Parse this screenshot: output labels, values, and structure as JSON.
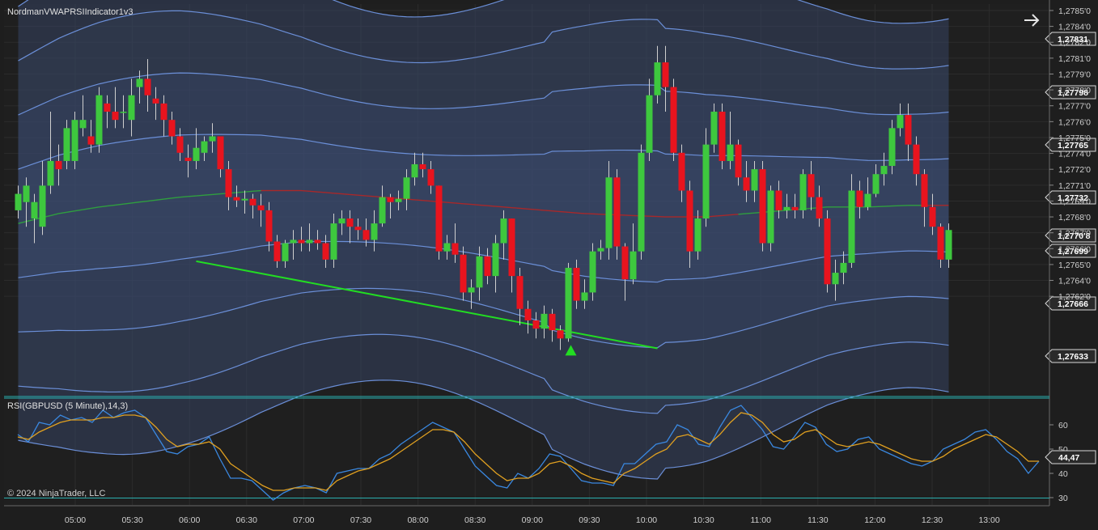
{
  "indicator_label": "NordmanVWAPRSIIndicator1v3",
  "rsi_label": "RSI(GBPUSD (5 Minute),14,3)",
  "copyright": "© 2024 NinjaTrader, LLC",
  "nav_icon": "arrow-right-icon",
  "colors": {
    "background": "#1e1e1e",
    "up": "#3ec83e",
    "down": "#e8141e",
    "band_line": "#6b8fd8",
    "band_fill": "#3a4a6e",
    "vwap_up": "#2f9e3f",
    "vwap_down": "#a8282a",
    "trendline": "#22dd22",
    "rsi": "#3a88e0",
    "rsi_signal": "#e0a020",
    "rsi_level": "#2ab0b0"
  },
  "chart_data": [
    {
      "type": "candlestick",
      "price_axis": {
        "ticks": [
          "1,2785'0",
          "1,2784'0",
          "1,2782'0",
          "1,2781'0",
          "1,2779'0",
          "1,2778'0",
          "1,2777'0",
          "1,2776'0",
          "1,2775'0",
          "1,2774'0",
          "1,2772'0",
          "1,2771'0",
          "1,2769'0",
          "1,2768'0",
          "1,2767'0",
          "1,2766'0",
          "1,2765'0",
          "1,2764'0",
          "1,2762'0"
        ]
      },
      "time_axis": {
        "ticks": [
          "05:00",
          "05:30",
          "06:00",
          "06:30",
          "07:00",
          "07:30",
          "08:00",
          "08:30",
          "09:00",
          "09:30",
          "10:00",
          "10:30",
          "11:00",
          "11:30",
          "12:00",
          "12:30",
          "13:00"
        ]
      },
      "price_tags": [
        "1,27831",
        "1,27798",
        "1,27765",
        "1,27732",
        "1,2770'8",
        "1,27699",
        "1,27666",
        "1,27633"
      ],
      "candles": [
        [
          1.2773,
          1.2774,
          1.27725,
          1.27745
        ],
        [
          1.27735,
          1.27745,
          1.2772,
          1.2775
        ],
        [
          1.27725,
          1.27735,
          1.2771,
          1.2774
        ],
        [
          1.2772,
          1.27745,
          1.27715,
          1.2776
        ],
        [
          1.27745,
          1.2776,
          1.2774,
          1.2779
        ],
        [
          1.2776,
          1.27755,
          1.27745,
          1.2777
        ],
        [
          1.2776,
          1.2778,
          1.27755,
          1.27785
        ],
        [
          1.2776,
          1.27785,
          1.27755,
          1.2779
        ],
        [
          1.2778,
          1.27785,
          1.27775,
          1.278
        ],
        [
          1.27775,
          1.2777,
          1.27765,
          1.27785
        ],
        [
          1.2777,
          1.278,
          1.27765,
          1.27805
        ],
        [
          1.27795,
          1.2779,
          1.2778,
          1.278
        ],
        [
          1.2779,
          1.27785,
          1.2778,
          1.27805
        ],
        [
          1.2779,
          1.2779,
          1.2778,
          1.278
        ],
        [
          1.27785,
          1.278,
          1.27775,
          1.2781
        ],
        [
          1.27805,
          1.2781,
          1.27795,
          1.27815
        ],
        [
          1.2781,
          1.278,
          1.2779,
          1.27822
        ],
        [
          1.27798,
          1.27795,
          1.27785,
          1.27805
        ],
        [
          1.27795,
          1.27785,
          1.27775,
          1.278
        ],
        [
          1.27785,
          1.27775,
          1.2777,
          1.2779
        ],
        [
          1.27775,
          1.27765,
          1.2776,
          1.2778
        ],
        [
          1.27762,
          1.2776,
          1.2775,
          1.2777
        ],
        [
          1.2776,
          1.27768,
          1.27755,
          1.2778
        ],
        [
          1.27765,
          1.27772,
          1.2776,
          1.27775
        ],
        [
          1.27772,
          1.27775,
          1.27765,
          1.27783
        ],
        [
          1.27775,
          1.27755,
          1.2775,
          1.27775
        ],
        [
          1.27755,
          1.27738,
          1.2773,
          1.2776
        ],
        [
          1.27738,
          1.27736,
          1.27732,
          1.27745
        ],
        [
          1.27736,
          1.27737,
          1.27728,
          1.27742
        ],
        [
          1.27737,
          1.27733,
          1.27725,
          1.2774
        ],
        [
          1.27733,
          1.2773,
          1.2772,
          1.2774
        ],
        [
          1.2773,
          1.27711,
          1.27705,
          1.27735
        ],
        [
          1.27711,
          1.27699,
          1.27695,
          1.27715
        ],
        [
          1.27699,
          1.2771,
          1.27695,
          1.27712
        ],
        [
          1.2771,
          1.27712,
          1.277,
          1.27718
        ],
        [
          1.27712,
          1.2771,
          1.27705,
          1.2772
        ],
        [
          1.2771,
          1.27712,
          1.27705,
          1.27722
        ],
        [
          1.27712,
          1.2771,
          1.27706,
          1.27718
        ],
        [
          1.2771,
          1.277,
          1.27695,
          1.27715
        ],
        [
          1.277,
          1.27722,
          1.27695,
          1.27728
        ],
        [
          1.27722,
          1.27725,
          1.27715,
          1.2773
        ],
        [
          1.27725,
          1.2772,
          1.2771,
          1.2773
        ],
        [
          1.2772,
          1.27718,
          1.27712,
          1.27725
        ],
        [
          1.27718,
          1.27712,
          1.27708,
          1.27725
        ],
        [
          1.27712,
          1.27722,
          1.27705,
          1.2773
        ],
        [
          1.27722,
          1.27738,
          1.2772,
          1.27745
        ],
        [
          1.27738,
          1.27735,
          1.27725,
          1.2774
        ],
        [
          1.27735,
          1.27737,
          1.2773,
          1.27742
        ],
        [
          1.27737,
          1.2775,
          1.2773,
          1.27755
        ],
        [
          1.2775,
          1.27758,
          1.27745,
          1.27765
        ],
        [
          1.27758,
          1.27755,
          1.2775,
          1.27765
        ],
        [
          1.27755,
          1.27745,
          1.2774,
          1.2776
        ],
        [
          1.27745,
          1.27705,
          1.277,
          1.27745
        ],
        [
          1.27705,
          1.2771,
          1.277,
          1.27715
        ],
        [
          1.2771,
          1.27703,
          1.27698,
          1.27722
        ],
        [
          1.27703,
          1.2768,
          1.27675,
          1.27708
        ],
        [
          1.2768,
          1.27683,
          1.2767,
          1.27688
        ],
        [
          1.27683,
          1.27702,
          1.27675,
          1.27708
        ],
        [
          1.27702,
          1.2769,
          1.27685,
          1.27707
        ],
        [
          1.2769,
          1.2771,
          1.2768,
          1.27715
        ],
        [
          1.2771,
          1.27725,
          1.277,
          1.2773
        ],
        [
          1.27725,
          1.2769,
          1.2768,
          1.27725
        ],
        [
          1.2769,
          1.2767,
          1.2766,
          1.27695
        ],
        [
          1.2767,
          1.27663,
          1.27655,
          1.27675
        ],
        [
          1.27663,
          1.27658,
          1.27652,
          1.27668
        ],
        [
          1.27658,
          1.27667,
          1.27652,
          1.27672
        ],
        [
          1.27667,
          1.27657,
          1.2765,
          1.2767
        ],
        [
          1.27657,
          1.27652,
          1.27645,
          1.2766
        ],
        [
          1.27652,
          1.27695,
          1.2765,
          1.27698
        ],
        [
          1.27695,
          1.27675,
          1.2767,
          1.277
        ],
        [
          1.27675,
          1.2768,
          1.2767,
          1.27688
        ],
        [
          1.2768,
          1.27705,
          1.27675,
          1.2771
        ],
        [
          1.27705,
          1.27707,
          1.277,
          1.27712
        ],
        [
          1.27707,
          1.2775,
          1.277,
          1.2776
        ],
        [
          1.2775,
          1.27708,
          1.277,
          1.27755
        ],
        [
          1.27708,
          1.27688,
          1.27675,
          1.2771
        ],
        [
          1.27688,
          1.27705,
          1.27685,
          1.27722
        ],
        [
          1.27705,
          1.27765,
          1.277,
          1.2777
        ],
        [
          1.27765,
          1.278,
          1.2776,
          1.2781
        ],
        [
          1.278,
          1.2782,
          1.27795,
          1.2783
        ],
        [
          1.2782,
          1.27805,
          1.2779,
          1.2783
        ],
        [
          1.27805,
          1.27765,
          1.2776,
          1.2781
        ],
        [
          1.27765,
          1.27742,
          1.27735,
          1.2777
        ],
        [
          1.27742,
          1.27705,
          1.27695,
          1.27748
        ],
        [
          1.27705,
          1.27725,
          1.277,
          1.2773
        ],
        [
          1.27725,
          1.2777,
          1.2772,
          1.2778
        ],
        [
          1.2777,
          1.2779,
          1.27765,
          1.27795
        ],
        [
          1.2779,
          1.2776,
          1.27755,
          1.27795
        ],
        [
          1.2776,
          1.2777,
          1.27755,
          1.2779
        ],
        [
          1.2777,
          1.2775,
          1.27745,
          1.27773
        ],
        [
          1.2775,
          1.27742,
          1.27735,
          1.2776
        ],
        [
          1.27742,
          1.27755,
          1.27735,
          1.2776
        ],
        [
          1.27755,
          1.2771,
          1.27705,
          1.2776
        ],
        [
          1.2771,
          1.27742,
          1.27705,
          1.27745
        ],
        [
          1.27742,
          1.2773,
          1.27725,
          1.27748
        ],
        [
          1.2773,
          1.27732,
          1.27725,
          1.2774
        ],
        [
          1.27732,
          1.2773,
          1.27725,
          1.2774
        ],
        [
          1.2773,
          1.27752,
          1.27725,
          1.27755
        ],
        [
          1.27752,
          1.27738,
          1.2773,
          1.2776
        ],
        [
          1.27738,
          1.27725,
          1.2772,
          1.27745
        ],
        [
          1.27725,
          1.27685,
          1.2768,
          1.2773
        ],
        [
          1.27685,
          1.27692,
          1.27675,
          1.277
        ],
        [
          1.27692,
          1.27698,
          1.27685,
          1.27705
        ],
        [
          1.27698,
          1.27742,
          1.27695,
          1.27752
        ],
        [
          1.27742,
          1.27732,
          1.27725,
          1.27748
        ],
        [
          1.27732,
          1.2774,
          1.2773,
          1.2775
        ],
        [
          1.2774,
          1.27752,
          1.27738,
          1.27758
        ],
        [
          1.27752,
          1.27757,
          1.27745,
          1.27765
        ],
        [
          1.27757,
          1.2778,
          1.27752,
          1.27785
        ],
        [
          1.2778,
          1.27788,
          1.27775,
          1.27795
        ],
        [
          1.27788,
          1.2777,
          1.2776,
          1.27795
        ],
        [
          1.2777,
          1.27752,
          1.27745,
          1.27775
        ],
        [
          1.27752,
          1.27732,
          1.2772,
          1.27755
        ],
        [
          1.27732,
          1.2772,
          1.27715,
          1.2774
        ],
        [
          1.2772,
          1.277,
          1.27695,
          1.27722
        ],
        [
          1.277,
          1.27718,
          1.27695,
          1.27722
        ]
      ],
      "vwap": [
        1.27722,
        1.27728,
        1.27732,
        1.27735,
        1.27738,
        1.2774,
        1.27742,
        1.27742,
        1.2774,
        1.27738,
        1.27736,
        1.27734,
        1.27732,
        1.2773,
        1.27728,
        1.27727,
        1.27726,
        1.27726,
        1.27728,
        1.2773,
        1.27732,
        1.27732,
        1.27733,
        1.27733
      ],
      "band_offsets": [
        0.00132,
        0.00099,
        0.00066,
        0.00033,
        -0.00033,
        -0.00066,
        -0.00099,
        -0.00132
      ],
      "trendline": {
        "from": [
          1.27699,
          22
        ],
        "to": [
          1.27646,
          49
        ]
      },
      "signal": {
        "type": "buy",
        "candle": 68
      }
    },
    {
      "type": "line",
      "title": "RSI",
      "y_ticks": [
        60,
        50,
        40,
        30
      ],
      "y_range": [
        27,
        71
      ],
      "levels": [
        70,
        30
      ],
      "last_value": "44,47",
      "series": [
        {
          "values": [
            56,
            53,
            61,
            60,
            64,
            62,
            63,
            61,
            66,
            63,
            65,
            66,
            63,
            56,
            49,
            48,
            51,
            52,
            55,
            46,
            38,
            38,
            37,
            33,
            29,
            32,
            34,
            35,
            34,
            32,
            40,
            41,
            42,
            42,
            46,
            48,
            52,
            55,
            58,
            61,
            59,
            57,
            50,
            43,
            39,
            35,
            34,
            40,
            38,
            42,
            48,
            47,
            42,
            37,
            36,
            36,
            35,
            44,
            44,
            48,
            52,
            53,
            60,
            58,
            52,
            51,
            59,
            66,
            68,
            63,
            58,
            51,
            50,
            55,
            61,
            59,
            52,
            49,
            50,
            54,
            55,
            50,
            48,
            46,
            44,
            43,
            45,
            50,
            52,
            54,
            57,
            58,
            54,
            49,
            46,
            40,
            45
          ]
        },
        {
          "values": [
            55,
            54,
            57,
            59,
            61,
            62,
            62,
            62,
            63,
            63,
            64,
            64,
            63,
            59,
            54,
            51,
            52,
            52,
            53,
            50,
            44,
            41,
            38,
            35,
            33,
            33,
            34,
            34,
            34,
            33,
            37,
            39,
            41,
            42,
            44,
            46,
            49,
            52,
            55,
            58,
            58,
            57,
            53,
            48,
            44,
            40,
            37,
            38,
            38,
            40,
            44,
            45,
            43,
            40,
            38,
            37,
            36,
            40,
            42,
            45,
            48,
            50,
            55,
            56,
            54,
            52,
            56,
            61,
            65,
            64,
            61,
            56,
            53,
            54,
            57,
            58,
            55,
            52,
            51,
            52,
            53,
            52,
            50,
            48,
            46,
            45,
            45,
            47,
            50,
            52,
            54,
            56,
            55,
            52,
            49,
            45,
            45
          ]
        }
      ]
    }
  ]
}
